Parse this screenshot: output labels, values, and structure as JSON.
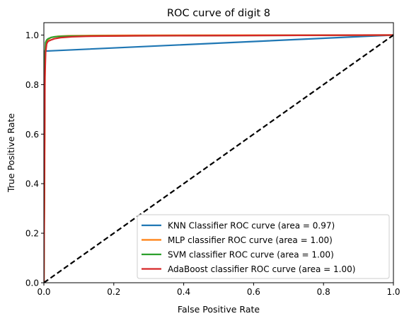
{
  "chart_data": {
    "type": "line",
    "title": "ROC curve of digit 8",
    "xlabel": "False Positive Rate",
    "ylabel": "True Positive Rate",
    "xlim": [
      0.0,
      1.0
    ],
    "ylim": [
      0.0,
      1.05
    ],
    "xticks": [
      0.0,
      0.2,
      0.4,
      0.6,
      0.8,
      1.0
    ],
    "xtick_labels": [
      "0.0",
      "0.2",
      "0.4",
      "0.6",
      "0.8",
      "1.0"
    ],
    "yticks": [
      0.0,
      0.2,
      0.4,
      0.6,
      0.8,
      1.0
    ],
    "ytick_labels": [
      "0.0",
      "0.2",
      "0.4",
      "0.6",
      "0.8",
      "1.0"
    ],
    "grid": false,
    "legend_position": "lower-right",
    "series": [
      {
        "name": "KNN Classifier ROC curve (area = 0.97)",
        "color": "#1f77b4",
        "x": [
          0.0,
          0.0,
          0.0,
          1.0
        ],
        "y": [
          0.0,
          0.8,
          0.935,
          1.0
        ]
      },
      {
        "name": "MLP classifier ROC curve (area = 1.00)",
        "color": "#ff7f0e",
        "x": [
          0.0,
          0.002,
          0.003,
          0.004,
          0.006,
          0.01,
          0.02,
          0.04,
          0.07,
          0.12,
          0.26,
          1.0
        ],
        "y": [
          0.0,
          0.43,
          0.8,
          0.94,
          0.97,
          0.98,
          0.99,
          0.995,
          0.997,
          0.998,
          0.999,
          1.0
        ]
      },
      {
        "name": "SVM classifier ROC curve (area = 1.00)",
        "color": "#2ca02c",
        "x": [
          0.0,
          0.002,
          0.003,
          0.005,
          0.008,
          0.012,
          0.02,
          0.03,
          0.05,
          0.08,
          0.27,
          1.0
        ],
        "y": [
          0.0,
          0.6,
          0.9,
          0.97,
          0.98,
          0.985,
          0.99,
          0.993,
          0.995,
          0.996,
          0.997,
          1.0
        ]
      },
      {
        "name": "AdaBoost classifier ROC curve (area = 1.00)",
        "color": "#d62728",
        "x": [
          0.0,
          0.003,
          0.005,
          0.008,
          0.012,
          0.02,
          0.03,
          0.05,
          0.08,
          0.12,
          0.26,
          1.0
        ],
        "y": [
          0.0,
          0.83,
          0.93,
          0.965,
          0.975,
          0.98,
          0.985,
          0.99,
          0.993,
          0.995,
          0.997,
          1.0
        ]
      }
    ],
    "reference_line": {
      "x": [
        0.0,
        1.0
      ],
      "y": [
        0.0,
        1.0
      ],
      "color": "#000000",
      "style": "dashed"
    }
  }
}
